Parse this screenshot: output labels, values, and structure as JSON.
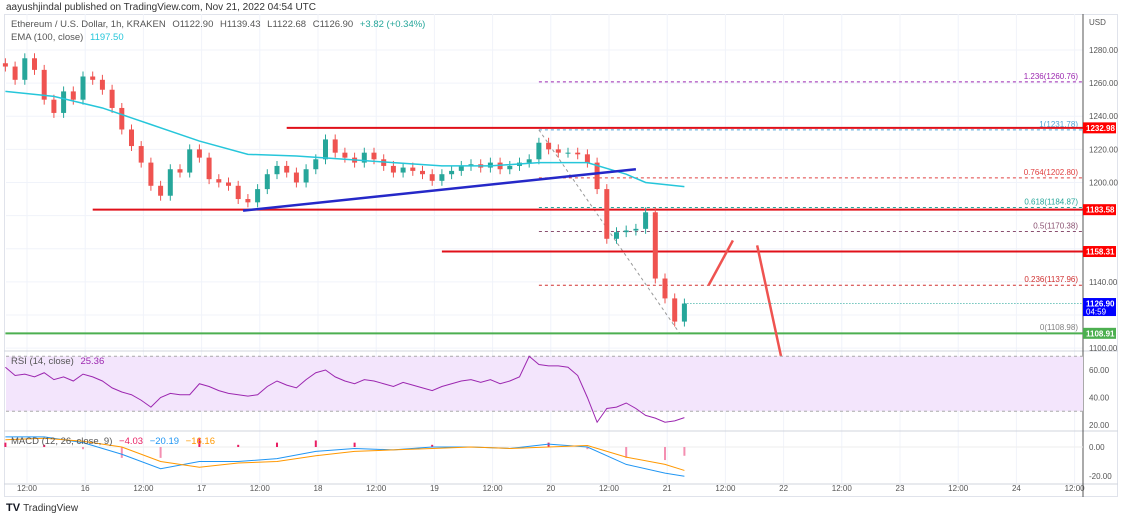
{
  "published": "aayushjindal published on TradingView.com, Nov 21, 2022 04:54 UTC",
  "legend": {
    "symbol": "Ethereum / U.S. Dollar, 1h, KRAKEN",
    "open": "O1122.90",
    "high": "H1139.43",
    "low": "L1122.68",
    "close": "C1126.90",
    "change": "+3.82 (+0.34%)",
    "ema_label": "EMA (100, close)",
    "ema_value": "1197.50",
    "rsi_label": "RSI (14, close)",
    "rsi_value": "25.36",
    "macd_label": "MACD (12, 26, close, 9)",
    "macd_hist": "−4.03",
    "macd_value": "−20.19",
    "macd_signal": "−16.16"
  },
  "branding": "TradingView",
  "colors": {
    "up": "#26a69a",
    "down": "#ef5350",
    "ema": "#26c6da",
    "rsi": "#9c27b0",
    "macd": "#2196f3",
    "signal": "#ff9800",
    "trendline": "#2528c8",
    "level": "#e0101a",
    "support": "#4caf50",
    "last_price": "#0000ff"
  },
  "chart_data": {
    "type": "candlestick",
    "currency": "USD",
    "ylim": [
      1100,
      1290
    ],
    "y_ticks": [
      "1280.00",
      "1260.00",
      "1240.00",
      "1220.00",
      "1200.00",
      "1140.00",
      "1100.00"
    ],
    "x_ticks": [
      "12:00",
      "16",
      "12:00",
      "17",
      "12:00",
      "18",
      "12:00",
      "19",
      "12:00",
      "20",
      "12:00",
      "21",
      "12:00",
      "22",
      "12:00",
      "23",
      "12:00",
      "24",
      "12:00"
    ],
    "candles": {
      "start": "2022-11-15 08:00",
      "interval_hours": 2,
      "first_open": 1272,
      "closes": [
        1270,
        1262,
        1275,
        1268,
        1250,
        1242,
        1255,
        1250,
        1264,
        1262,
        1256,
        1245,
        1232,
        1222,
        1212,
        1198,
        1192,
        1208,
        1206,
        1220,
        1215,
        1202,
        1200,
        1198,
        1190,
        1188,
        1196,
        1205,
        1210,
        1206,
        1200,
        1208,
        1214,
        1226,
        1218,
        1215,
        1212,
        1218,
        1214,
        1210,
        1206,
        1209,
        1207,
        1205,
        1201,
        1205,
        1207,
        1210,
        1211,
        1209,
        1212,
        1208,
        1210,
        1212,
        1214,
        1224,
        1220,
        1218,
        1218,
        1217,
        1212,
        1196,
        1166,
        1170,
        1171,
        1172,
        1182,
        1142,
        1130,
        1116,
        1126.9
      ]
    },
    "ema100": [
      [
        "2022-11-15 08:00",
        1255
      ],
      [
        "2022-11-15 18:00",
        1252
      ],
      [
        "2022-11-16 04:00",
        1245
      ],
      [
        "2022-11-16 14:00",
        1235
      ],
      [
        "2022-11-17 00:00",
        1225
      ],
      [
        "2022-11-17 10:00",
        1217
      ],
      [
        "2022-11-17 20:00",
        1216
      ],
      [
        "2022-11-18 06:00",
        1214
      ],
      [
        "2022-11-18 16:00",
        1212
      ],
      [
        "2022-11-19 02:00",
        1210
      ],
      [
        "2022-11-19 12:00",
        1210
      ],
      [
        "2022-11-19 22:00",
        1212
      ],
      [
        "2022-11-20 08:00",
        1212
      ],
      [
        "2022-11-20 16:00",
        1205
      ],
      [
        "2022-11-20 20:00",
        1200
      ],
      [
        "2022-11-21 04:00",
        1197.5
      ]
    ],
    "price_labels": [
      {
        "value": "1232.98",
        "color": "#ff0000"
      },
      {
        "value": "1183.58",
        "color": "#ff0000"
      },
      {
        "value": "1158.31",
        "color": "#ff0000"
      },
      {
        "value": "1126.90",
        "sub": "04:59",
        "color": "#0000ff"
      },
      {
        "value": "1108.91",
        "color": "#4caf50"
      }
    ],
    "horizontal_lines": [
      {
        "price": 1232.98,
        "from": "2022-11-17 18:00",
        "color": "#e0101a"
      },
      {
        "price": 1183.58,
        "from": "2022-11-16 02:00",
        "color": "#e0101a"
      },
      {
        "price": 1158.31,
        "from": "2022-11-19 02:00",
        "color": "#e0101a"
      },
      {
        "price": 1108.91,
        "from": "2022-11-15 08:00",
        "color": "#4caf50"
      }
    ],
    "trendline": {
      "from": [
        "2022-11-17 09:00",
        1183
      ],
      "to": [
        "2022-11-20 18:00",
        1208
      ]
    },
    "fib": {
      "from": [
        "2022-11-19 22:00",
        1231.78
      ],
      "to": [
        "2022-11-21 03:00",
        1108.98
      ],
      "levels": [
        {
          "label": "1.236(1260.76)",
          "price": 1260.76,
          "color": "#9c27b0"
        },
        {
          "label": "1(1231.78)",
          "price": 1231.78,
          "color": "#4fa3d6"
        },
        {
          "label": "0.764(1202.80)",
          "price": 1202.8,
          "color": "#e04040"
        },
        {
          "label": "0.618(1184.87)",
          "price": 1184.87,
          "color": "#26a69a"
        },
        {
          "label": "0.5(1170.38)",
          "price": 1170.38,
          "color": "#8a5070"
        },
        {
          "label": "0.236(1137.96)",
          "price": 1137.96,
          "color": "#d03030"
        },
        {
          "label": "0(1108.98)",
          "price": 1108.98,
          "color": "#808080"
        }
      ]
    },
    "projection_arrows": [
      {
        "from": [
          "2022-11-21 09:00",
          1138
        ],
        "to": [
          "2022-11-21 14:00",
          1165
        ]
      },
      {
        "from": [
          "2022-11-21 19:00",
          1162
        ],
        "to": [
          "2022-11-22 00:00",
          1094
        ]
      }
    ],
    "rsi": {
      "ylim": [
        10,
        80
      ],
      "y_ticks": [
        "60.00",
        "40.00",
        "20.00"
      ],
      "band": [
        30,
        70
      ],
      "values": [
        62,
        56,
        57,
        55,
        58,
        53,
        55,
        52,
        57,
        55,
        52,
        47,
        44,
        42,
        38,
        33,
        40,
        43,
        42,
        42,
        50,
        48,
        45,
        43,
        42,
        41,
        42,
        48,
        52,
        49,
        47,
        53,
        58,
        60,
        55,
        52,
        50,
        53,
        52,
        50,
        48,
        51,
        49,
        47,
        45,
        48,
        50,
        52,
        53,
        51,
        53,
        50,
        52,
        55,
        70,
        64,
        63,
        63,
        62,
        56,
        40,
        22,
        32,
        33,
        36,
        32,
        27,
        25,
        22,
        23,
        25.36
      ]
    },
    "macd": {
      "ylim": [
        -22,
        10
      ],
      "y_ticks": [
        "0.00",
        "-20.00"
      ],
      "start": "2022-11-15 08:00",
      "interval_hours": 8,
      "macd": [
        7,
        7,
        3,
        -5,
        -15,
        -10,
        -10,
        -8,
        -3,
        -1,
        -2,
        0,
        0,
        -1,
        2,
        0,
        -12,
        -18,
        -20.19
      ],
      "signal": [
        5,
        6,
        4,
        0,
        -10,
        -14,
        -11,
        -10,
        -6,
        -3,
        -2,
        -1,
        0,
        -1,
        0,
        1,
        -7,
        -12,
        -16.16
      ]
    }
  }
}
